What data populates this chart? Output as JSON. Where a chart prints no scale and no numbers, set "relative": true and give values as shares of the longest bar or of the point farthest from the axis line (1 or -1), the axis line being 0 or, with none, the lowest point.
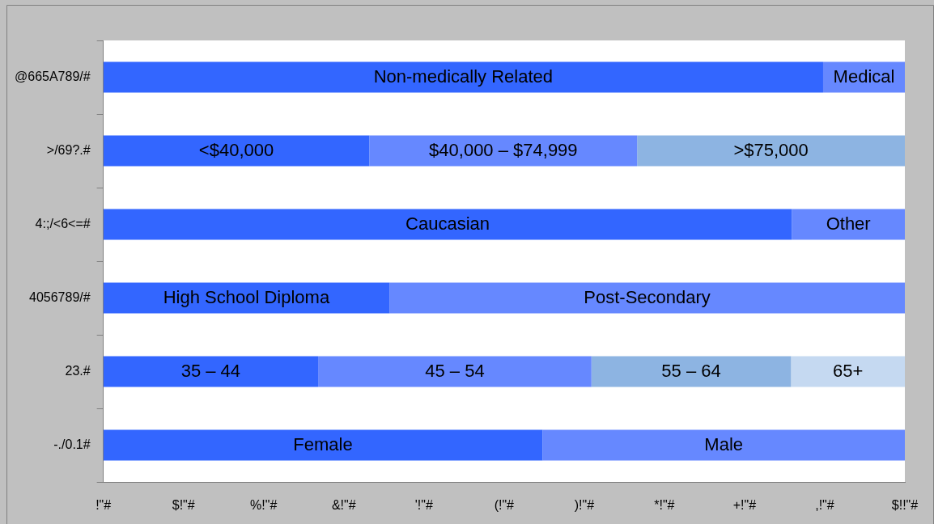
{
  "chart_data": {
    "type": "bar",
    "orientation": "horizontal",
    "stacked": true,
    "relative": true,
    "categories": [
      "@665A789/#",
      ">/69?.#",
      "4:;/<6<=#",
      "4056789/#",
      "23.#",
      "-./0.1#"
    ],
    "series": [
      {
        "color": "#3366ff",
        "values": [
          0.898,
          0.332,
          0.859,
          0.357,
          0.268,
          0.548
        ]
      },
      {
        "color": "#6688ff",
        "values": [
          0.102,
          0.334,
          0.141,
          0.643,
          0.341,
          0.452
        ]
      },
      {
        "color": "#8db4e2",
        "values": [
          null,
          0.334,
          null,
          null,
          0.249,
          null
        ]
      },
      {
        "color": "#c5d9f1",
        "values": [
          null,
          null,
          null,
          null,
          0.142,
          null
        ]
      }
    ],
    "annotations": [
      "Non-medically Related",
      "Medical",
      "<$40,000",
      "$40,000 – $74,999",
      ">$75,000",
      "Caucasian",
      "Other",
      "High School Diploma",
      "Post-Secondary",
      "35 – 44",
      "45 – 54",
      "55 – 64",
      "65+",
      "Female",
      "Male",
      "!\"#",
      "$!\"#",
      "%!\"#",
      "&!\"#",
      "'!\"#",
      "(!\"#",
      ")!\"#",
      "*!\"#",
      "+!\"#",
      ",!\"#",
      "$!!\"#"
    ]
  }
}
